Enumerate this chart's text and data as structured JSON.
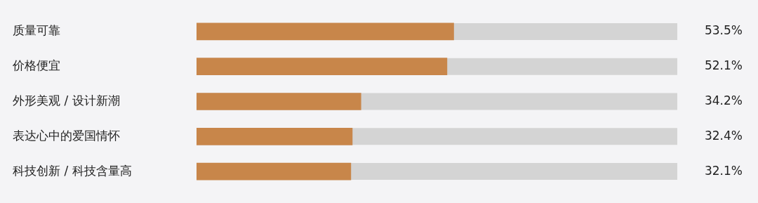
{
  "chart_data": {
    "type": "bar",
    "orientation": "horizontal",
    "categories": [
      "质量可靠",
      "价格便宜",
      "外形美观 / 设计新潮",
      "表达心中的爱国情怀",
      "科技创新 / 科技含量高"
    ],
    "values": [
      53.5,
      52.1,
      34.2,
      32.4,
      32.1
    ],
    "value_labels": [
      "53.5%",
      "52.1%",
      "34.2%",
      "32.4%",
      "32.1%"
    ],
    "color": "#c8864a",
    "xlim": [
      0,
      100
    ],
    "tick_labels": "y"
  }
}
